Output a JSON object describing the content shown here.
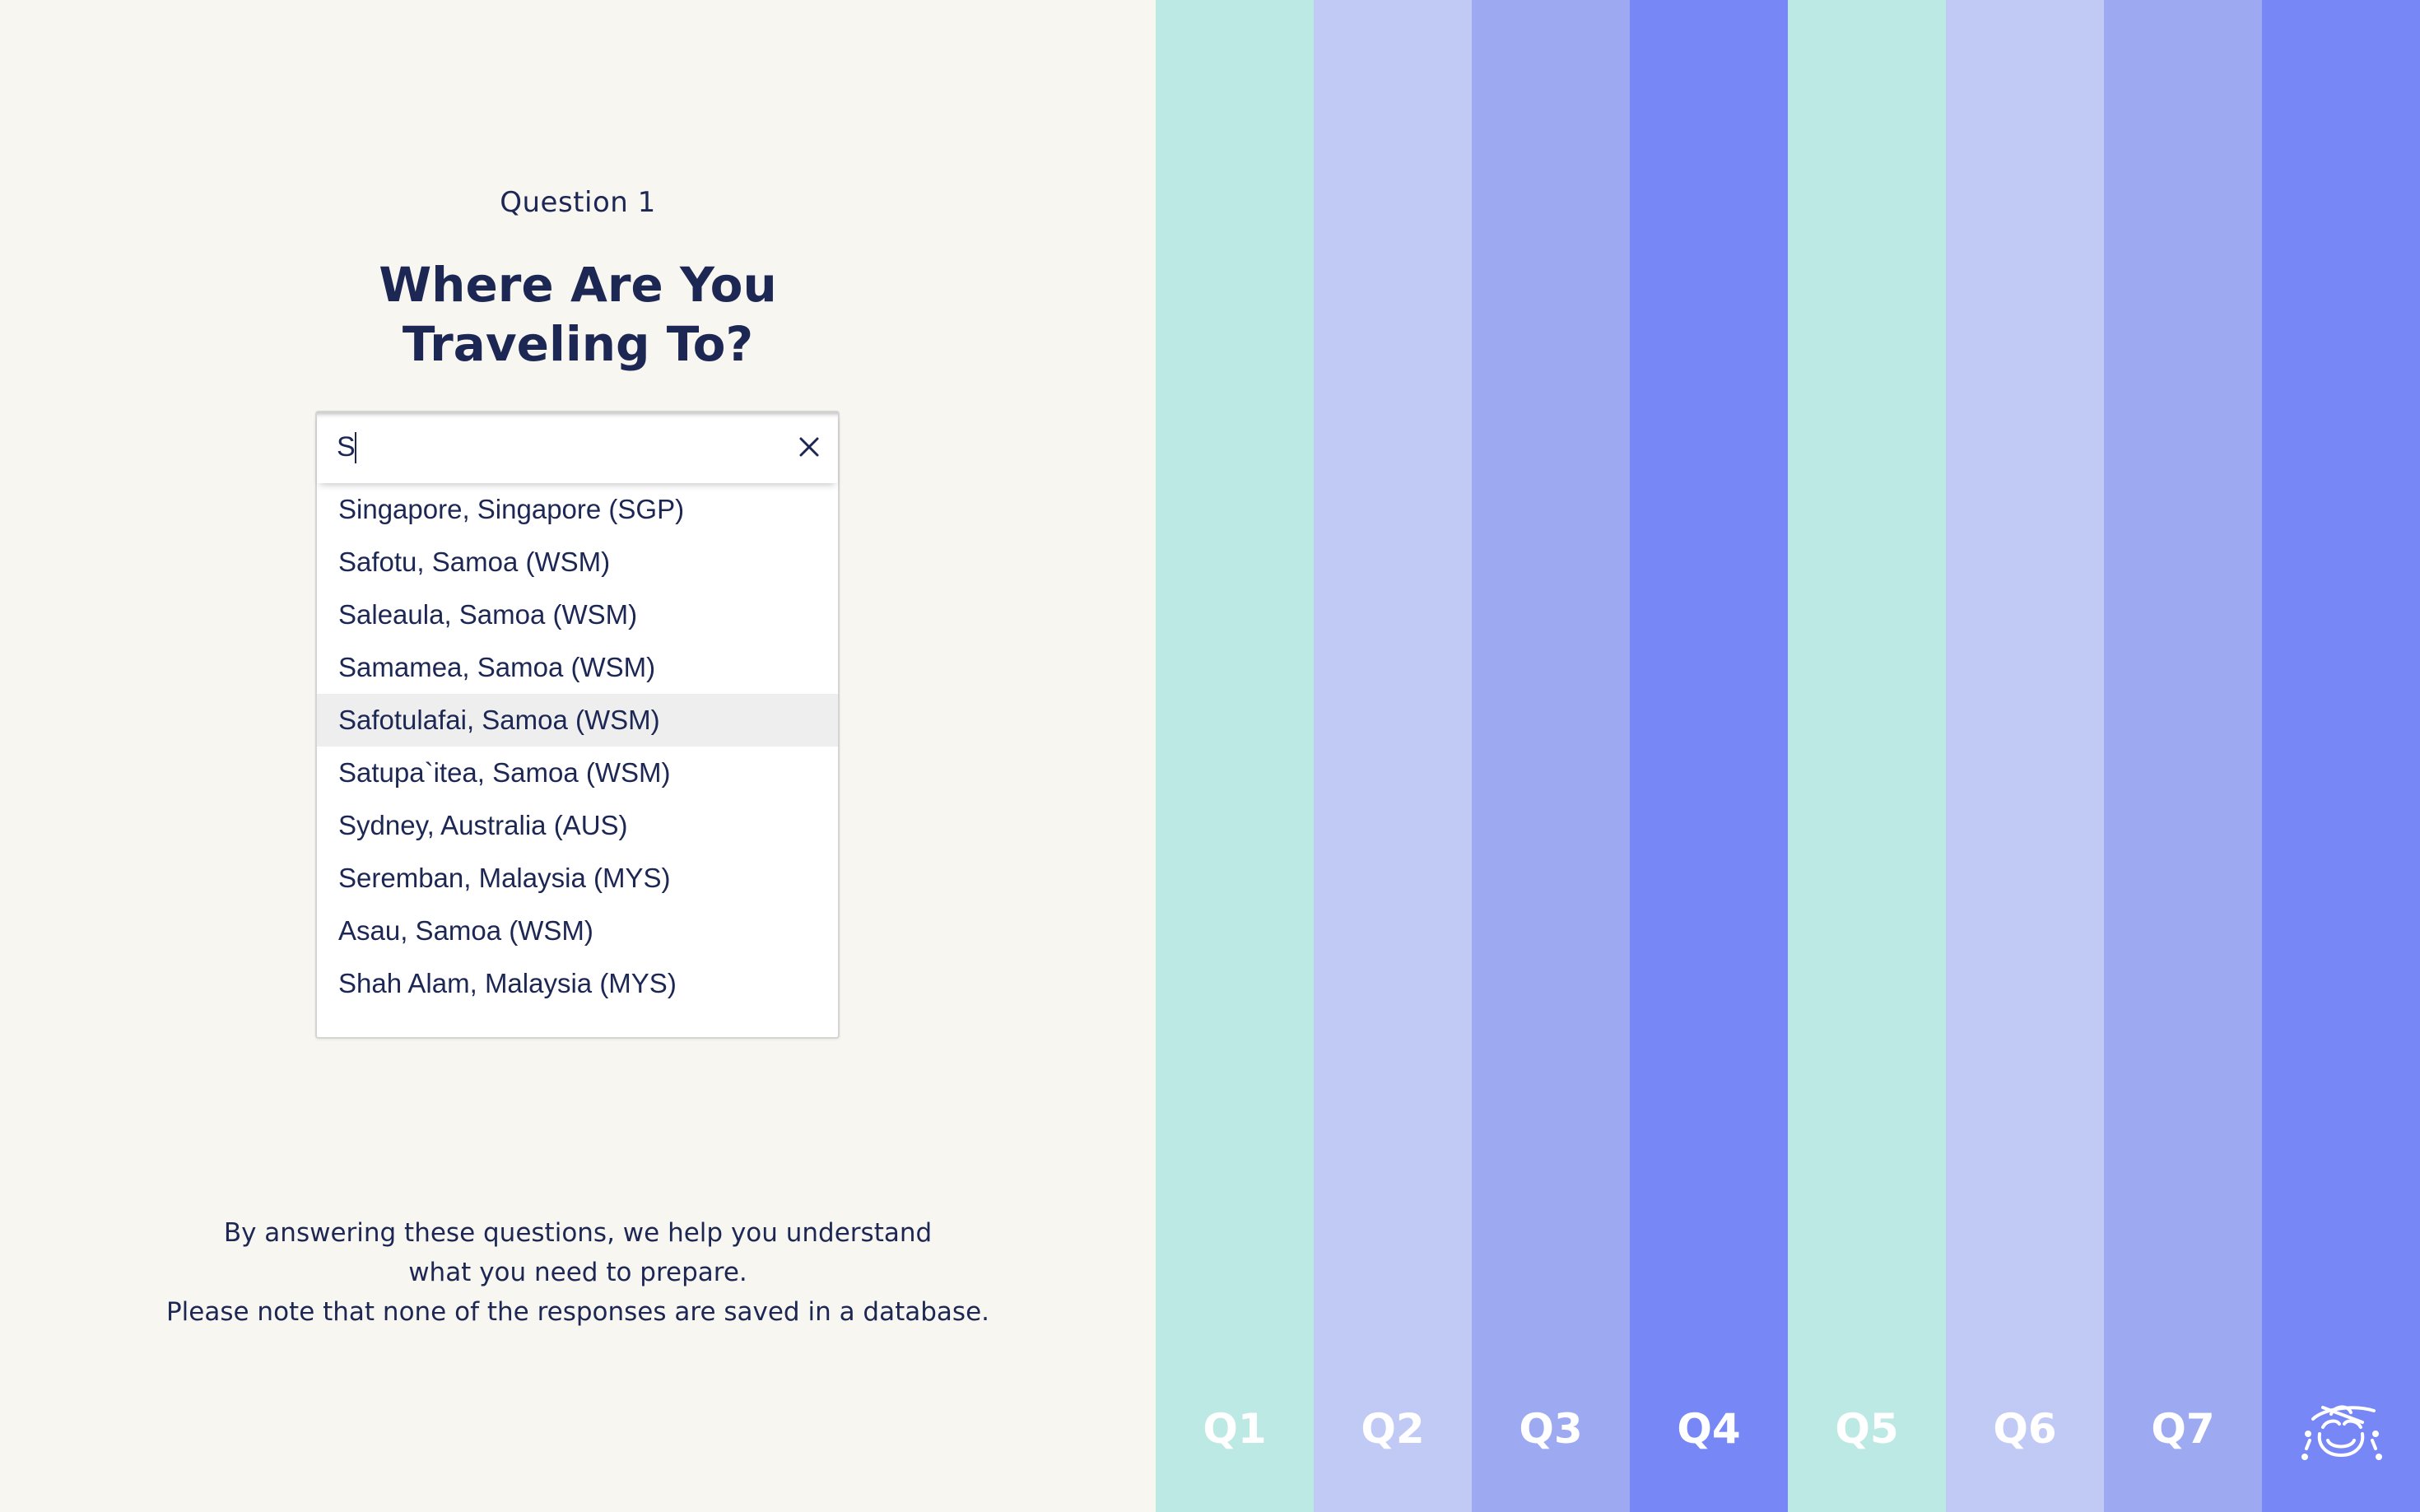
{
  "question": {
    "number_label": "Question 1",
    "title_line1": "Where Are You",
    "title_line2": "Traveling To?"
  },
  "search": {
    "value": "S",
    "clear_icon": "close-icon"
  },
  "results": [
    "Singapore, Singapore (SGP)",
    "Safotu, Samoa (WSM)",
    "Saleaula, Samoa (WSM)",
    "Samamea, Samoa (WSM)",
    "Safotulafai, Samoa (WSM)",
    "Satupa`itea, Samoa (WSM)",
    "Sydney, Australia (AUS)",
    "Seremban, Malaysia (MYS)",
    "Asau, Samoa (WSM)",
    "Shah Alam, Malaysia (MYS)"
  ],
  "highlighted_result": "Safotulafai, Samoa (WSM)",
  "disclaimer": {
    "line1": "By answering these questions, we help you understand",
    "line2": "what you need to prepare.",
    "line3": "Please note that none of the responses are saved in a database."
  },
  "steps": [
    {
      "label": "Q1",
      "color": "#bde9e4"
    },
    {
      "label": "Q2",
      "color": "#c0caf4"
    },
    {
      "label": "Q3",
      "color": "#9daaf2"
    },
    {
      "label": "Q4",
      "color": "#7788f6"
    },
    {
      "label": "Q5",
      "color": "#bde9e4"
    },
    {
      "label": "Q6",
      "color": "#c0caf4"
    },
    {
      "label": "Q7",
      "color": "#9daaf2"
    },
    {
      "label": "",
      "color": "#7788f6",
      "icon": "traveler-hat-icon"
    }
  ],
  "colors": {
    "background": "#f8f6f1",
    "text": "#1d2753",
    "highlight": "#eeeeee"
  }
}
